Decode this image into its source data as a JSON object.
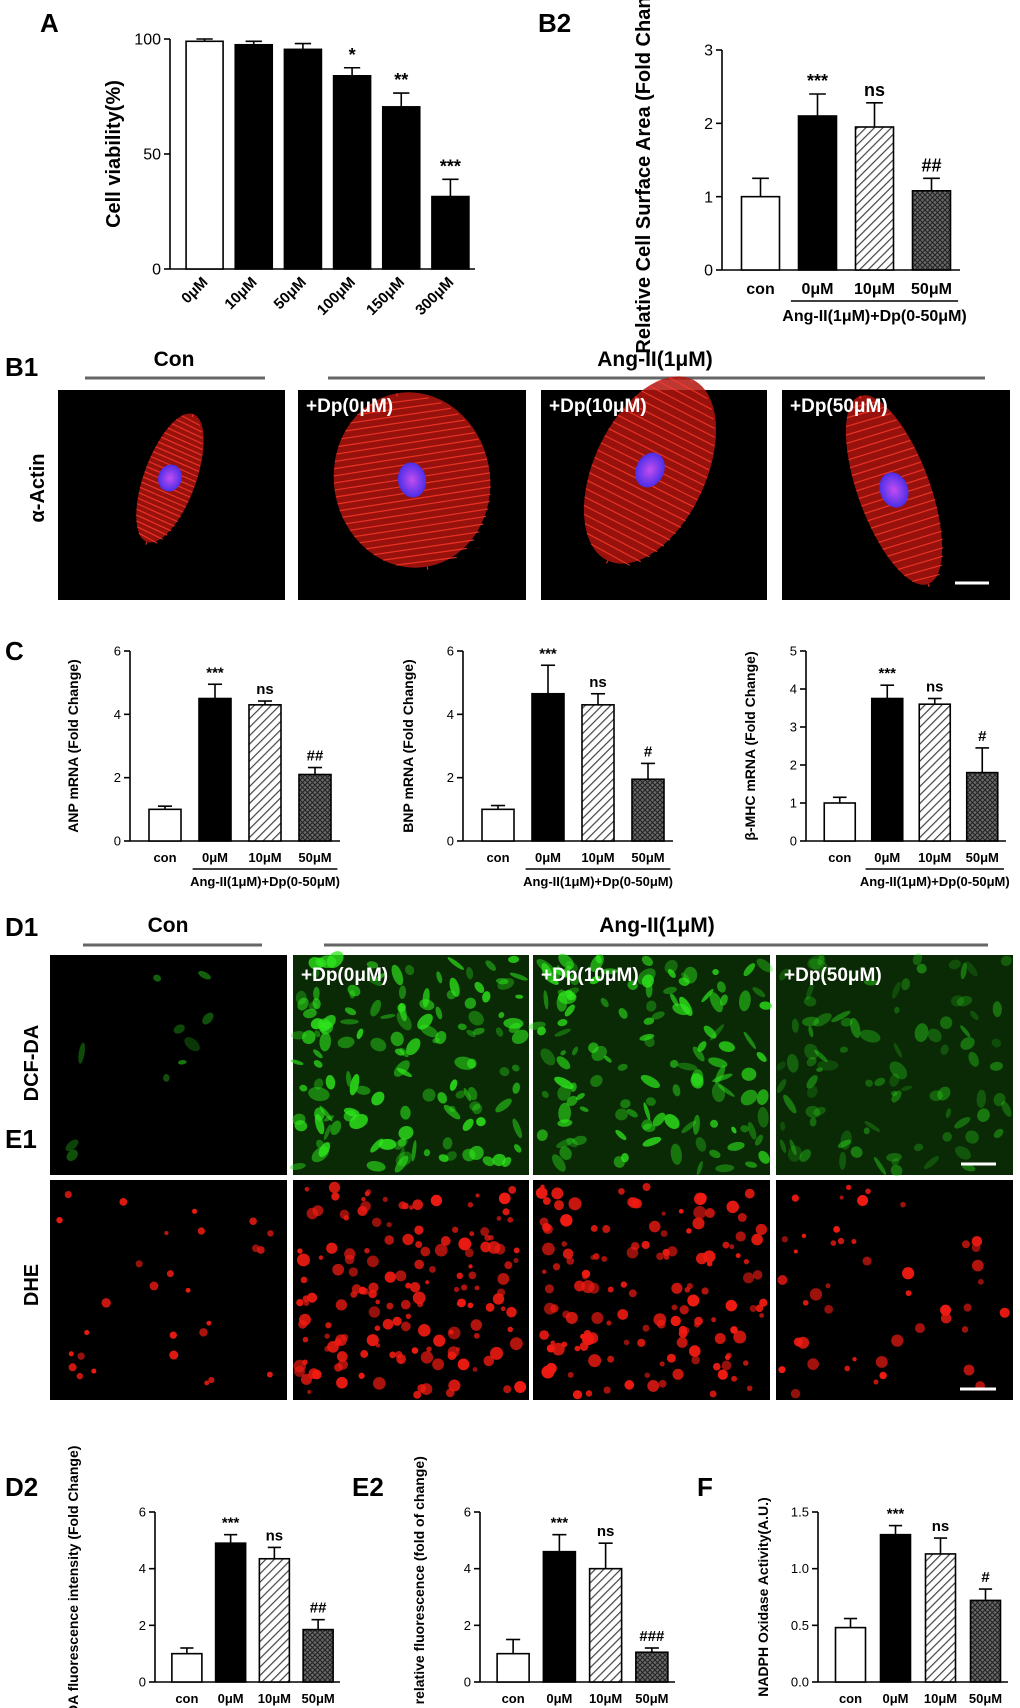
{
  "colors": {
    "con": "#ffffff",
    "ang": "#000000",
    "dp10": "hatch",
    "dp50": "crosshatch",
    "actin_red": "#e8231e",
    "nucleus_blue": "#5a2ef0",
    "dcf_green": "#2ee81c",
    "dhe_red": "#f01b12"
  },
  "panels": {
    "A": "A",
    "B1": "B1",
    "B2": "B2",
    "C": "C",
    "D1": "D1",
    "E1": "E1",
    "D2": "D2",
    "E2": "E2",
    "F": "F"
  },
  "imaging": {
    "con_header": "Con",
    "ang_header": "Ang-II(1μM)",
    "b1_row_label": "α-Actin",
    "d1_row_label": "DCF-DA",
    "e1_row_label": "DHE",
    "tile_labels": [
      "+Dp(0μM)",
      "+Dp(10μM)",
      "+Dp(50μM)"
    ]
  },
  "group_caption": "Ang-II(1μM)+Dp(0-50μM)",
  "categories4": [
    "con",
    "0μM",
    "10μM",
    "50μM"
  ],
  "chart_data": [
    {
      "id": "A",
      "type": "bar",
      "categories": [
        "0μM",
        "10μM",
        "50μM",
        "100μM",
        "150μM",
        "300μM"
      ],
      "values": [
        99,
        97.5,
        95.5,
        84,
        70.5,
        31.5
      ],
      "errors": [
        1,
        1.5,
        2.5,
        3.5,
        6,
        7.5
      ],
      "annotations": [
        "",
        "",
        "",
        "*",
        "**",
        "***"
      ],
      "ylabel": "Cell viability(%)",
      "ylim": [
        0,
        100
      ],
      "yticks": [
        "0",
        "50",
        "100"
      ],
      "ytickvals": [
        0,
        50,
        100
      ],
      "fills": [
        "con",
        "ang",
        "ang",
        "ang",
        "ang",
        "ang"
      ]
    },
    {
      "id": "B2",
      "type": "bar",
      "categories": [
        "con",
        "0μM",
        "10μM",
        "50μM"
      ],
      "values": [
        1.0,
        2.1,
        1.95,
        1.08
      ],
      "errors": [
        0.25,
        0.3,
        0.33,
        0.17
      ],
      "annotations": [
        "",
        "***",
        "ns",
        "##"
      ],
      "ylabel": "Relative Cell Surface Area (Fold Change)",
      "ylim": [
        0,
        3
      ],
      "yticks": [
        "0",
        "1",
        "2",
        "3"
      ],
      "ytickvals": [
        0,
        1,
        2,
        3
      ],
      "group_label": "Ang-II(1μM)+Dp(0-50μM)"
    },
    {
      "id": "C-ANP",
      "type": "bar",
      "categories": [
        "con",
        "0μM",
        "10μM",
        "50μM"
      ],
      "values": [
        1.0,
        4.5,
        4.3,
        2.1
      ],
      "errors": [
        0.1,
        0.45,
        0.12,
        0.22
      ],
      "annotations": [
        "",
        "***",
        "ns",
        "##"
      ],
      "ylabel": "ANP mRNA (Fold Change)",
      "ylim": [
        0,
        6
      ],
      "yticks": [
        "0",
        "2",
        "4",
        "6"
      ],
      "ytickvals": [
        0,
        2,
        4,
        6
      ],
      "group_label": "Ang-II(1μM)+Dp(0-50μM)"
    },
    {
      "id": "C-BNP",
      "type": "bar",
      "categories": [
        "con",
        "0μM",
        "10μM",
        "50μM"
      ],
      "values": [
        1.0,
        4.65,
        4.3,
        1.95
      ],
      "errors": [
        0.12,
        0.9,
        0.35,
        0.5
      ],
      "annotations": [
        "",
        "***",
        "ns",
        "#"
      ],
      "ylabel": "BNP mRNA (Fold Change)",
      "ylim": [
        0,
        6
      ],
      "yticks": [
        "0",
        "2",
        "4",
        "6"
      ],
      "ytickvals": [
        0,
        2,
        4,
        6
      ],
      "group_label": "Ang-II(1μM)+Dp(0-50μM)"
    },
    {
      "id": "C-bMHC",
      "type": "bar",
      "categories": [
        "con",
        "0μM",
        "10μM",
        "50μM"
      ],
      "values": [
        1.0,
        3.75,
        3.6,
        1.8
      ],
      "errors": [
        0.15,
        0.35,
        0.15,
        0.65
      ],
      "annotations": [
        "",
        "***",
        "ns",
        "#"
      ],
      "ylabel": "β-MHC mRNA (Fold Change)",
      "ylim": [
        0,
        5
      ],
      "yticks": [
        "0",
        "1",
        "2",
        "3",
        "4",
        "5"
      ],
      "ytickvals": [
        0,
        1,
        2,
        3,
        4,
        5
      ],
      "group_label": "Ang-II(1μM)+Dp(0-50μM)"
    },
    {
      "id": "D2",
      "type": "bar",
      "categories": [
        "con",
        "0μM",
        "10μM",
        "50μM"
      ],
      "values": [
        1.0,
        4.9,
        4.35,
        1.85
      ],
      "errors": [
        0.2,
        0.3,
        0.4,
        0.35
      ],
      "annotations": [
        "",
        "***",
        "ns",
        "##"
      ],
      "ylabel": "DCF-DA fluorescence intensity (Fold Change)",
      "ylim": [
        0,
        6
      ],
      "yticks": [
        "0",
        "2",
        "4",
        "6"
      ],
      "ytickvals": [
        0,
        2,
        4,
        6
      ],
      "group_label": "Ang-II(1μM)+Dp(0-50μM)"
    },
    {
      "id": "E2",
      "type": "bar",
      "categories": [
        "con",
        "0μM",
        "10μM",
        "50μM"
      ],
      "values": [
        1.0,
        4.6,
        4.0,
        1.05
      ],
      "errors": [
        0.5,
        0.6,
        0.9,
        0.15
      ],
      "annotations": [
        "",
        "***",
        "ns",
        "###"
      ],
      "ylabel": "DHE relative fluorescence (fold of change)",
      "ylim": [
        0,
        6
      ],
      "yticks": [
        "0",
        "2",
        "4",
        "6"
      ],
      "ytickvals": [
        0,
        2,
        4,
        6
      ],
      "group_label": "Ang-II(1μM)+Dp(0-50μM)"
    },
    {
      "id": "F",
      "type": "bar",
      "categories": [
        "con",
        "0μM",
        "10μM",
        "50μM"
      ],
      "values": [
        0.48,
        1.3,
        1.13,
        0.72
      ],
      "errors": [
        0.08,
        0.08,
        0.14,
        0.1
      ],
      "annotations": [
        "",
        "***",
        "ns",
        "#"
      ],
      "ylabel": "NADPH Oxidase Activity(A.U.)",
      "ylim": [
        0,
        1.5
      ],
      "yticks": [
        "0.0",
        "0.5",
        "1.0",
        "1.5"
      ],
      "ytickvals": [
        0,
        0.5,
        1.0,
        1.5
      ],
      "group_label": "Ang-II(1μM)+Dp(0-50μM)"
    }
  ]
}
